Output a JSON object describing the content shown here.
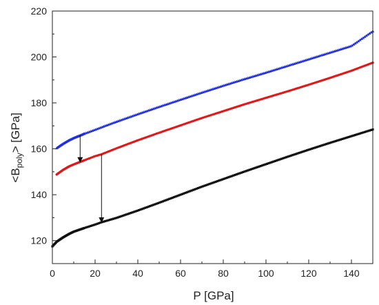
{
  "chart_data": {
    "type": "scatter",
    "xlabel": "P [GPa]",
    "ylabel": {
      "prefix": "<B",
      "subscript": "poly",
      "suffix": "> [GPa]"
    },
    "xlim": [
      0,
      150
    ],
    "ylim": [
      110,
      220
    ],
    "x_ticks": [
      0,
      20,
      40,
      60,
      80,
      100,
      120,
      140
    ],
    "y_ticks": [
      120,
      140,
      160,
      180,
      200,
      220
    ],
    "grid": false,
    "legend": "none",
    "colors": {
      "blue": "#1f2fe0",
      "red": "#e01818",
      "black": "#111111",
      "axis": "#222222"
    },
    "series": [
      {
        "color": "blue",
        "marker": "triangle",
        "points": [
          [
            2,
            160.3
          ],
          [
            5,
            162.2
          ],
          [
            8,
            163.8
          ],
          [
            10,
            164.7
          ],
          [
            13,
            165.8
          ],
          [
            15,
            166.6
          ],
          [
            20,
            168.3
          ],
          [
            25,
            170.1
          ],
          [
            30,
            171.8
          ],
          [
            40,
            175.1
          ],
          [
            50,
            178.3
          ],
          [
            60,
            181.4
          ],
          [
            70,
            184.5
          ],
          [
            80,
            187.5
          ],
          [
            90,
            190.4
          ],
          [
            100,
            193.2
          ],
          [
            110,
            196.1
          ],
          [
            120,
            199.0
          ],
          [
            130,
            201.9
          ],
          [
            140,
            204.8
          ],
          [
            150,
            211.2
          ]
        ]
      },
      {
        "color": "red",
        "marker": "circle",
        "points": [
          [
            2,
            148.8
          ],
          [
            5,
            150.8
          ],
          [
            8,
            152.4
          ],
          [
            10,
            153.2
          ],
          [
            13,
            154.3
          ],
          [
            15,
            155.0
          ],
          [
            20,
            156.8
          ],
          [
            23,
            157.6
          ],
          [
            30,
            160.2
          ],
          [
            40,
            163.7
          ],
          [
            50,
            167.0
          ],
          [
            60,
            170.2
          ],
          [
            70,
            173.4
          ],
          [
            80,
            176.4
          ],
          [
            90,
            179.4
          ],
          [
            100,
            182.2
          ],
          [
            110,
            185.0
          ],
          [
            120,
            187.9
          ],
          [
            130,
            190.9
          ],
          [
            140,
            194.0
          ],
          [
            150,
            197.5
          ]
        ]
      },
      {
        "color": "black",
        "marker": "square",
        "points": [
          [
            0,
            117.5
          ],
          [
            2,
            119.5
          ],
          [
            5,
            121.4
          ],
          [
            8,
            123.0
          ],
          [
            10,
            123.9
          ],
          [
            15,
            125.5
          ],
          [
            20,
            127.0
          ],
          [
            23,
            128.0
          ],
          [
            30,
            129.9
          ],
          [
            40,
            133.1
          ],
          [
            50,
            136.5
          ],
          [
            60,
            140.0
          ],
          [
            70,
            143.5
          ],
          [
            80,
            146.8
          ],
          [
            90,
            150.1
          ],
          [
            100,
            153.3
          ],
          [
            110,
            156.5
          ],
          [
            120,
            159.6
          ],
          [
            130,
            162.6
          ],
          [
            140,
            165.5
          ],
          [
            150,
            168.4
          ]
        ]
      }
    ],
    "annotations": [
      {
        "type": "arrow",
        "x": 13,
        "from_y": 166.0,
        "to_y": 154.2,
        "color": "black"
      },
      {
        "type": "arrow",
        "x": 23,
        "from_y": 157.6,
        "to_y": 128.0,
        "color": "black"
      }
    ]
  }
}
